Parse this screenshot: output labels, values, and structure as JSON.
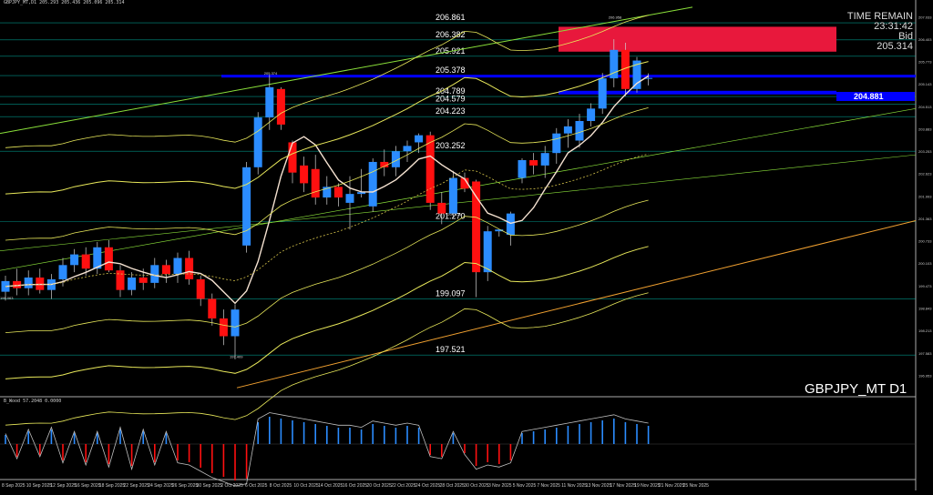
{
  "header": {
    "window_info": "GBPJPY_MT,D1 205.293 205.436 205.096 205.314"
  },
  "time_remain": {
    "label": "TIME REMAIN",
    "value": "23:31:42",
    "bid_label": "Bid",
    "bid_value": "205.314"
  },
  "symbol": "GBPJPY_MT D1",
  "current_price_box": "204.881",
  "sub_indicator_label": "B_Wood 57.2048  0.0000",
  "colors": {
    "background": "#000000",
    "bull": "#2b8cff",
    "bear": "#ff1010",
    "band": "#e8e85a",
    "ma_white": "#f4e1d0",
    "grid_line": "#00c0b0",
    "trend_green": "#8ae03a",
    "trend_orange": "#f0a030",
    "highlight_red": "#e8183c",
    "highlight_blue": "#0000ff"
  },
  "chart_data": {
    "type": "candlestick",
    "symbol": "GBPJPY_MT",
    "timeframe": "D1",
    "ylim": [
      196.4,
      207.4
    ],
    "y_ticks": [
      "207.033",
      "206.403",
      "205.773",
      "205.143",
      "204.513",
      "203.883",
      "203.253",
      "202.623",
      "201.993",
      "201.363",
      "200.733",
      "200.103",
      "199.473",
      "198.843",
      "198.213",
      "197.583",
      "196.953"
    ],
    "x_labels": [
      "8 Sep 2025",
      "10 Sep 2025",
      "12 Sep 2025",
      "16 Sep 2025",
      "18 Sep 2025",
      "22 Sep 2025",
      "24 Sep 2025",
      "26 Sep 2025",
      "30 Sep 2025",
      "2 Oct 2025",
      "6 Oct 2025",
      "8 Oct 2025",
      "10 Oct 2025",
      "14 Oct 2025",
      "16 Oct 2025",
      "20 Oct 2025",
      "22 Oct 2025",
      "24 Oct 2025",
      "28 Oct 2025",
      "30 Oct 2025",
      "3 Nov 2025",
      "5 Nov 2025",
      "7 Nov 2025",
      "11 Nov 2025",
      "13 Nov 2025",
      "17 Nov 2025",
      "19 Nov 2025",
      "21 Nov 2025",
      "25 Nov 2025"
    ],
    "level_lines": [
      {
        "value": 206.861,
        "label": "206.861"
      },
      {
        "value": 206.382,
        "label": "206.382"
      },
      {
        "value": 205.921,
        "label": "205.921"
      },
      {
        "value": 205.378,
        "label": "205.378"
      },
      {
        "value": 204.789,
        "label": "204.789"
      },
      {
        "value": 204.579,
        "label": "204.579"
      },
      {
        "value": 204.223,
        "label": "204.223"
      },
      {
        "value": 203.252,
        "label": "203.252"
      },
      {
        "value": 201.27,
        "label": "201.270"
      },
      {
        "value": 199.097,
        "label": "199.097"
      },
      {
        "value": 197.521,
        "label": "197.521"
      }
    ],
    "marker_labels": [
      {
        "value": 205.374,
        "label": "205.374"
      },
      {
        "value": 206.958,
        "label": "206.958"
      },
      {
        "value": 201.408,
        "label": "201.408"
      },
      {
        "value": 199.063,
        "label": "199.063"
      },
      {
        "value": 197.409,
        "label": "197.409"
      }
    ],
    "candles": [
      {
        "o": 199.3,
        "h": 199.75,
        "l": 199.05,
        "c": 199.6
      },
      {
        "o": 199.6,
        "h": 199.95,
        "l": 199.2,
        "c": 199.4
      },
      {
        "o": 199.4,
        "h": 199.9,
        "l": 199.2,
        "c": 199.7
      },
      {
        "o": 199.7,
        "h": 199.95,
        "l": 199.25,
        "c": 199.35
      },
      {
        "o": 199.35,
        "h": 199.8,
        "l": 199.1,
        "c": 199.65
      },
      {
        "o": 199.65,
        "h": 200.25,
        "l": 199.45,
        "c": 200.05
      },
      {
        "o": 200.05,
        "h": 200.5,
        "l": 199.85,
        "c": 200.35
      },
      {
        "o": 200.35,
        "h": 200.55,
        "l": 199.75,
        "c": 199.95
      },
      {
        "o": 199.95,
        "h": 200.7,
        "l": 199.8,
        "c": 200.55
      },
      {
        "o": 200.55,
        "h": 200.75,
        "l": 199.85,
        "c": 199.9
      },
      {
        "o": 199.9,
        "h": 200.05,
        "l": 199.15,
        "c": 199.35
      },
      {
        "o": 199.35,
        "h": 199.85,
        "l": 199.2,
        "c": 199.7
      },
      {
        "o": 199.7,
        "h": 199.95,
        "l": 199.35,
        "c": 199.55
      },
      {
        "o": 199.55,
        "h": 200.25,
        "l": 199.4,
        "c": 200.05
      },
      {
        "o": 200.05,
        "h": 200.2,
        "l": 199.55,
        "c": 199.8
      },
      {
        "o": 199.8,
        "h": 200.4,
        "l": 199.55,
        "c": 200.25
      },
      {
        "o": 200.25,
        "h": 200.45,
        "l": 199.5,
        "c": 199.65
      },
      {
        "o": 199.65,
        "h": 199.75,
        "l": 198.9,
        "c": 199.1
      },
      {
        "o": 199.1,
        "h": 199.25,
        "l": 198.35,
        "c": 198.55
      },
      {
        "o": 198.55,
        "h": 198.8,
        "l": 197.8,
        "c": 198.05
      },
      {
        "o": 198.05,
        "h": 198.95,
        "l": 197.4,
        "c": 198.8
      },
      {
        "o": 200.6,
        "h": 202.95,
        "l": 200.4,
        "c": 202.8
      },
      {
        "o": 202.8,
        "h": 204.35,
        "l": 202.6,
        "c": 204.2
      },
      {
        "o": 204.2,
        "h": 205.4,
        "l": 203.85,
        "c": 205.05
      },
      {
        "o": 205.0,
        "h": 205.05,
        "l": 203.85,
        "c": 204.0
      },
      {
        "o": 203.5,
        "h": 203.55,
        "l": 202.35,
        "c": 202.65
      },
      {
        "o": 202.85,
        "h": 203.1,
        "l": 202.1,
        "c": 202.35
      },
      {
        "o": 202.75,
        "h": 203.15,
        "l": 201.75,
        "c": 201.95
      },
      {
        "o": 201.95,
        "h": 202.55,
        "l": 201.75,
        "c": 202.25
      },
      {
        "o": 202.25,
        "h": 202.35,
        "l": 201.7,
        "c": 201.95
      },
      {
        "o": 201.8,
        "h": 202.55,
        "l": 201.05,
        "c": 202.05
      },
      {
        "o": 202.05,
        "h": 202.75,
        "l": 201.95,
        "c": 202.1
      },
      {
        "o": 201.7,
        "h": 203.05,
        "l": 201.55,
        "c": 202.95
      },
      {
        "o": 202.95,
        "h": 203.3,
        "l": 202.55,
        "c": 202.8
      },
      {
        "o": 202.8,
        "h": 203.4,
        "l": 202.55,
        "c": 203.25
      },
      {
        "o": 203.25,
        "h": 203.55,
        "l": 202.95,
        "c": 203.4
      },
      {
        "o": 203.5,
        "h": 203.75,
        "l": 203.2,
        "c": 203.7
      },
      {
        "o": 203.7,
        "h": 203.8,
        "l": 201.6,
        "c": 201.8
      },
      {
        "o": 201.8,
        "h": 202.1,
        "l": 201.2,
        "c": 201.5
      },
      {
        "o": 201.5,
        "h": 202.7,
        "l": 201.35,
        "c": 202.5
      },
      {
        "o": 202.5,
        "h": 202.65,
        "l": 202.1,
        "c": 202.2
      },
      {
        "o": 202.4,
        "h": 202.45,
        "l": 199.15,
        "c": 199.85
      },
      {
        "o": 199.85,
        "h": 201.15,
        "l": 199.6,
        "c": 201.0
      },
      {
        "o": 201.0,
        "h": 201.05,
        "l": 200.85,
        "c": 201.05
      },
      {
        "o": 200.9,
        "h": 201.55,
        "l": 200.6,
        "c": 201.5
      },
      {
        "o": 202.5,
        "h": 203.05,
        "l": 202.35,
        "c": 203.0
      },
      {
        "o": 203.0,
        "h": 203.2,
        "l": 202.6,
        "c": 202.85
      },
      {
        "o": 202.85,
        "h": 203.4,
        "l": 202.5,
        "c": 203.2
      },
      {
        "o": 203.2,
        "h": 203.9,
        "l": 202.9,
        "c": 203.75
      },
      {
        "o": 203.75,
        "h": 204.15,
        "l": 203.35,
        "c": 203.95
      },
      {
        "o": 203.55,
        "h": 204.3,
        "l": 203.35,
        "c": 204.1
      },
      {
        "o": 204.1,
        "h": 204.6,
        "l": 203.95,
        "c": 204.45
      },
      {
        "o": 204.45,
        "h": 205.45,
        "l": 204.3,
        "c": 205.3
      },
      {
        "o": 205.3,
        "h": 206.4,
        "l": 205.05,
        "c": 206.1
      },
      {
        "o": 206.1,
        "h": 206.3,
        "l": 204.8,
        "c": 205.0
      },
      {
        "o": 205.0,
        "h": 205.9,
        "l": 204.9,
        "c": 205.8
      },
      {
        "o": 205.3,
        "h": 205.44,
        "l": 205.1,
        "c": 205.31
      }
    ],
    "oscillator": {
      "bars": [
        0.25,
        -0.35,
        0.35,
        -0.3,
        0.4,
        -0.45,
        0.3,
        -0.5,
        0.3,
        -0.55,
        0.4,
        -0.6,
        0.35,
        -0.5,
        0.3,
        -0.45,
        -0.5,
        -0.65,
        -0.8,
        -0.9,
        -1.0,
        -0.95,
        0.6,
        0.75,
        0.7,
        0.65,
        0.6,
        0.55,
        0.5,
        0.45,
        0.45,
        0.4,
        0.55,
        0.5,
        0.45,
        0.5,
        0.45,
        -0.3,
        -0.35,
        0.3,
        -0.25,
        -0.6,
        -0.5,
        -0.55,
        -0.45,
        0.3,
        0.35,
        0.4,
        0.45,
        0.5,
        0.55,
        0.6,
        0.65,
        0.7,
        0.6,
        0.55,
        0.5
      ]
    }
  }
}
